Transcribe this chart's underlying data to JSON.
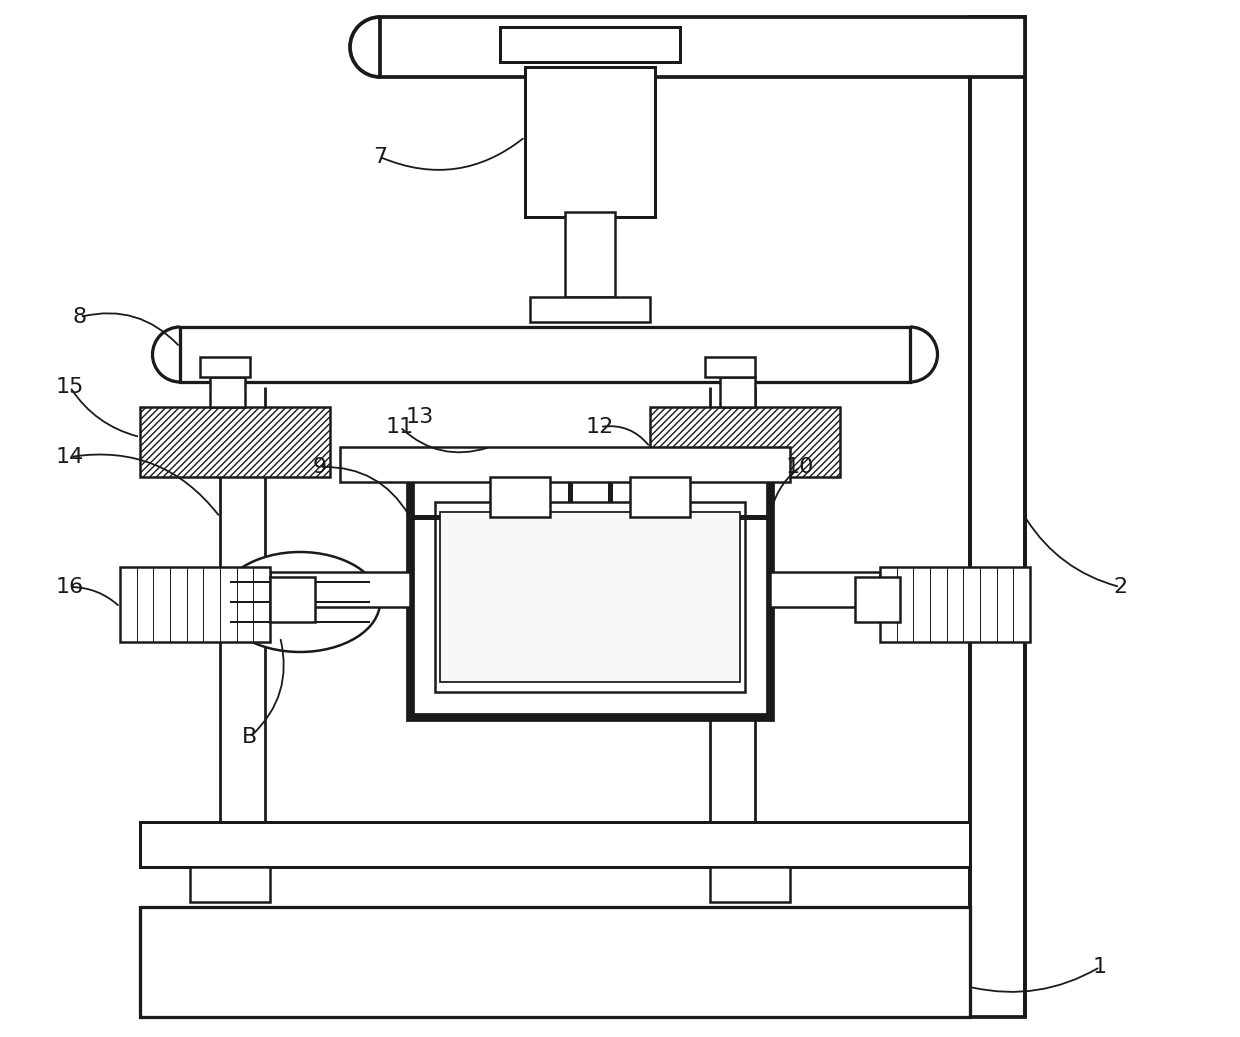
{
  "bg_color": "#ffffff",
  "lc": "#1a1a1a",
  "lw": 1.8,
  "label_fontsize": 16,
  "fig_w": 12.4,
  "fig_h": 10.37,
  "dpi": 100
}
